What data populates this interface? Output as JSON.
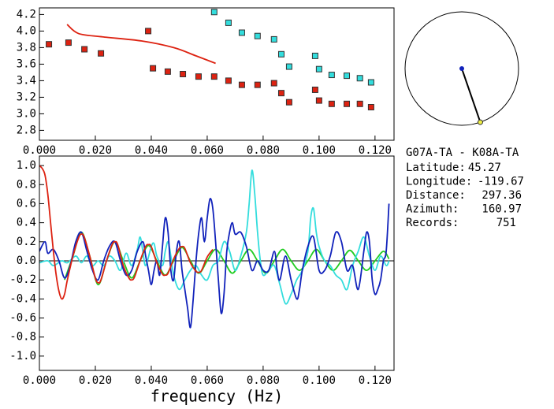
{
  "chart_data": [
    {
      "type": "scatter",
      "xlim": [
        0,
        0.1268
      ],
      "ylim": [
        2.68,
        4.28
      ],
      "xticks": [
        {
          "value": 0,
          "label": "0.000"
        },
        {
          "value": 0.02,
          "label": "0.020"
        },
        {
          "value": 0.04,
          "label": "0.040"
        },
        {
          "value": 0.06,
          "label": "0.060"
        },
        {
          "value": 0.08,
          "label": "0.080"
        },
        {
          "value": 0.1,
          "label": "0.100"
        },
        {
          "value": 0.12,
          "label": "0.120"
        }
      ],
      "yticks": [
        {
          "value": 2.8,
          "label": "2.8"
        },
        {
          "value": 3.0,
          "label": "3.0"
        },
        {
          "value": 3.2,
          "label": "3.2"
        },
        {
          "value": 3.4,
          "label": "3.4"
        },
        {
          "value": 3.6,
          "label": "3.6"
        },
        {
          "value": 3.8,
          "label": "3.8"
        },
        {
          "value": 4.0,
          "label": "4.0"
        },
        {
          "value": 4.2,
          "label": "4.2"
        }
      ],
      "series": [
        {
          "type": "scatter",
          "color": "#dd2211",
          "x": [
            0.0034,
            0.0104,
            0.0161,
            0.022,
            0.0389,
            0.0406,
            0.0459,
            0.0513,
            0.0569,
            0.0625,
            0.0676,
            0.0724,
            0.078,
            0.0839,
            0.0865,
            0.0893,
            0.0986,
            0.1,
            0.1045,
            0.1099,
            0.1146,
            0.1186
          ],
          "values": [
            3.84,
            3.86,
            3.78,
            3.73,
            4.0,
            3.55,
            3.51,
            3.48,
            3.45,
            3.45,
            3.4,
            3.35,
            3.35,
            3.37,
            3.25,
            3.14,
            3.29,
            3.16,
            3.12,
            3.12,
            3.12,
            3.08
          ]
        },
        {
          "type": "scatter",
          "color": "#33dddd",
          "x": [
            0.0625,
            0.0676,
            0.0724,
            0.078,
            0.0839,
            0.0865,
            0.0893,
            0.0986,
            0.1,
            0.1045,
            0.1099,
            0.1146,
            0.1186
          ],
          "values": [
            4.23,
            4.1,
            3.98,
            3.94,
            3.9,
            3.72,
            3.57,
            3.7,
            3.54,
            3.47,
            3.46,
            3.43,
            3.38
          ]
        },
        {
          "type": "line",
          "color": "#dd2211",
          "x": [
            0.0099,
            0.014,
            0.0225,
            0.0366,
            0.048,
            0.056,
            0.063
          ],
          "values": [
            4.08,
            3.97,
            3.93,
            3.88,
            3.8,
            3.7,
            3.61
          ]
        }
      ]
    },
    {
      "type": "line",
      "xlabel": "frequency (Hz)",
      "zero_line": true,
      "xlim": [
        0,
        0.1268
      ],
      "ylim": [
        -1.15,
        1.1
      ],
      "xticks": [
        {
          "value": 0,
          "label": "0.000"
        },
        {
          "value": 0.02,
          "label": "0.020"
        },
        {
          "value": 0.04,
          "label": "0.040"
        },
        {
          "value": 0.06,
          "label": "0.060"
        },
        {
          "value": 0.08,
          "label": "0.080"
        },
        {
          "value": 0.1,
          "label": "0.100"
        },
        {
          "value": 0.12,
          "label": "0.120"
        }
      ],
      "yticks": [
        {
          "value": -1,
          "label": "-1.0"
        },
        {
          "value": -0.8,
          "label": "-0.8"
        },
        {
          "value": -0.6,
          "label": "-0.6"
        },
        {
          "value": -0.4,
          "label": "-0.4"
        },
        {
          "value": -0.2,
          "label": "-0.2"
        },
        {
          "value": 0,
          "label": "0.0"
        },
        {
          "value": 0.2,
          "label": "0.2"
        },
        {
          "value": 0.4,
          "label": "0.4"
        },
        {
          "value": 0.6,
          "label": "0.6"
        },
        {
          "value": 0.8,
          "label": "0.8"
        },
        {
          "value": 1,
          "label": "1.0"
        }
      ],
      "series": [
        {
          "color": "#22cc22",
          "x": [
            0.009,
            0.012,
            0.015,
            0.018,
            0.021,
            0.024,
            0.027,
            0.03,
            0.033,
            0.036,
            0.039,
            0.042,
            0.045,
            0.048,
            0.051,
            0.054,
            0.057,
            0.06,
            0.063,
            0.066,
            0.069,
            0.072,
            0.075,
            0.078,
            0.081,
            0.084,
            0.087,
            0.09,
            0.093,
            0.096,
            0.099,
            0.102,
            0.105,
            0.108,
            0.111,
            0.114,
            0.117,
            0.12,
            0.123,
            0.125
          ],
          "values": [
            -0.2,
            0.05,
            0.3,
            0.05,
            -0.25,
            0.0,
            0.2,
            0.0,
            -0.18,
            0.0,
            0.16,
            0.0,
            -0.15,
            0.0,
            0.14,
            0.0,
            -0.13,
            0.0,
            0.12,
            0.0,
            -0.13,
            0.0,
            0.12,
            0.0,
            -0.13,
            0.0,
            0.12,
            0.0,
            -0.1,
            0.0,
            0.12,
            0.0,
            -0.1,
            0.0,
            0.11,
            0.0,
            -0.1,
            0.0,
            0.1,
            0.02
          ]
        },
        {
          "color": "#33dddd",
          "x": [
            0,
            0.003,
            0.005,
            0.008,
            0.01,
            0.013,
            0.015,
            0.017,
            0.019,
            0.021,
            0.023,
            0.025,
            0.027,
            0.029,
            0.031,
            0.033,
            0.035,
            0.036,
            0.037,
            0.038,
            0.04,
            0.041,
            0.042,
            0.044,
            0.045,
            0.046,
            0.047,
            0.048,
            0.05,
            0.052,
            0.054,
            0.056,
            0.058,
            0.06,
            0.062,
            0.064,
            0.066,
            0.068,
            0.07,
            0.072,
            0.074,
            0.075,
            0.076,
            0.077,
            0.078,
            0.079,
            0.08,
            0.082,
            0.084,
            0.086,
            0.088,
            0.09,
            0.092,
            0.094,
            0.096,
            0.097,
            0.098,
            0.099,
            0.1,
            0.102,
            0.104,
            0.106,
            0.108,
            0.11,
            0.112,
            0.114,
            0.116,
            0.118,
            0.12,
            0.122,
            0.124,
            0.125
          ],
          "values": [
            -0.02,
            0.0,
            -0.05,
            0.0,
            -0.02,
            0.05,
            -0.02,
            0.05,
            -0.05,
            0.0,
            -0.05,
            0.05,
            0.0,
            -0.1,
            0.08,
            -0.05,
            0.12,
            0.25,
            0.1,
            -0.05,
            0.15,
            0.18,
            0.05,
            -0.05,
            0.1,
            0.2,
            0.05,
            -0.15,
            -0.3,
            -0.2,
            -0.1,
            -0.05,
            -0.15,
            -0.2,
            -0.05,
            0.0,
            0.2,
            0.1,
            -0.1,
            0.05,
            0.3,
            0.6,
            0.95,
            0.7,
            0.3,
            0.0,
            -0.15,
            -0.1,
            -0.05,
            -0.25,
            -0.45,
            -0.35,
            -0.2,
            -0.1,
            0.1,
            0.45,
            0.55,
            0.3,
            0.15,
            0.0,
            -0.05,
            -0.15,
            -0.2,
            -0.3,
            -0.05,
            0.1,
            0.25,
            0.05,
            -0.1,
            0.05,
            -0.05,
            0.0
          ]
        },
        {
          "color": "#1122bb",
          "x": [
            0,
            0.002,
            0.003,
            0.005,
            0.007,
            0.009,
            0.011,
            0.013,
            0.015,
            0.017,
            0.019,
            0.021,
            0.023,
            0.025,
            0.027,
            0.029,
            0.031,
            0.033,
            0.035,
            0.037,
            0.038,
            0.039,
            0.04,
            0.041,
            0.042,
            0.043,
            0.044,
            0.045,
            0.046,
            0.047,
            0.048,
            0.049,
            0.05,
            0.051,
            0.052,
            0.053,
            0.054,
            0.055,
            0.056,
            0.057,
            0.058,
            0.059,
            0.06,
            0.061,
            0.062,
            0.063,
            0.064,
            0.065,
            0.066,
            0.067,
            0.068,
            0.069,
            0.07,
            0.072,
            0.074,
            0.076,
            0.078,
            0.08,
            0.082,
            0.084,
            0.085,
            0.086,
            0.088,
            0.09,
            0.092,
            0.093,
            0.094,
            0.096,
            0.098,
            0.1,
            0.102,
            0.104,
            0.106,
            0.108,
            0.11,
            0.112,
            0.114,
            0.116,
            0.117,
            0.118,
            0.119,
            0.12,
            0.121,
            0.122,
            0.123,
            0.124,
            0.125
          ],
          "values": [
            0.1,
            0.2,
            0.08,
            0.12,
            0.0,
            -0.18,
            -0.05,
            0.2,
            0.3,
            0.1,
            -0.1,
            -0.2,
            0.0,
            0.15,
            0.2,
            0.0,
            -0.15,
            -0.1,
            0.1,
            0.2,
            0.05,
            -0.1,
            -0.25,
            -0.1,
            0.0,
            -0.15,
            0.15,
            0.45,
            0.3,
            -0.1,
            -0.2,
            0.1,
            0.2,
            -0.1,
            -0.3,
            -0.5,
            -0.7,
            -0.4,
            0.0,
            0.3,
            0.45,
            0.2,
            0.45,
            0.65,
            0.55,
            0.2,
            -0.2,
            -0.55,
            -0.35,
            0.1,
            0.3,
            0.4,
            0.28,
            0.3,
            0.15,
            -0.1,
            0.0,
            -0.1,
            -0.1,
            0.1,
            -0.1,
            -0.2,
            0.05,
            -0.2,
            -0.4,
            -0.3,
            -0.1,
            0.15,
            0.25,
            -0.1,
            -0.1,
            0.05,
            0.3,
            0.2,
            -0.1,
            -0.05,
            -0.3,
            0.1,
            0.3,
            0.2,
            -0.2,
            -0.35,
            -0.3,
            -0.2,
            0.0,
            0.1,
            0.6
          ]
        },
        {
          "color": "#dd2211",
          "x": [
            0,
            0.001,
            0.002,
            0.003,
            0.004,
            0.005,
            0.006,
            0.007,
            0.008,
            0.009,
            0.01,
            0.012,
            0.014,
            0.015,
            0.016,
            0.018,
            0.02,
            0.021,
            0.022,
            0.024,
            0.026,
            0.027,
            0.028,
            0.03,
            0.032,
            0.033,
            0.034,
            0.036,
            0.038,
            0.039,
            0.04,
            0.042,
            0.044,
            0.045,
            0.046,
            0.048,
            0.05,
            0.051,
            0.052,
            0.054,
            0.056,
            0.057,
            0.058,
            0.06,
            0.062
          ],
          "values": [
            1.0,
            0.97,
            0.9,
            0.7,
            0.4,
            0.1,
            -0.15,
            -0.32,
            -0.4,
            -0.35,
            -0.2,
            0.05,
            0.24,
            0.28,
            0.25,
            0.05,
            -0.18,
            -0.23,
            -0.2,
            0.0,
            0.17,
            0.2,
            0.17,
            -0.05,
            -0.18,
            -0.2,
            -0.17,
            0.0,
            0.15,
            0.17,
            0.15,
            -0.02,
            -0.14,
            -0.15,
            -0.13,
            0.02,
            0.13,
            0.15,
            0.13,
            -0.02,
            -0.11,
            -0.12,
            -0.1,
            0.04,
            0.12
          ]
        }
      ]
    }
  ],
  "station": {
    "title": "G07A-TA - K08A-TA",
    "rows": [
      {
        "label": "Latitude:",
        "value": 45.27
      },
      {
        "label": "Longitude:",
        "value": -119.67
      },
      {
        "label": "Distance:",
        "value": 297.36
      },
      {
        "label": "Azimuth:",
        "value": 160.97
      },
      {
        "label": "Records:",
        "value": 751
      }
    ]
  }
}
